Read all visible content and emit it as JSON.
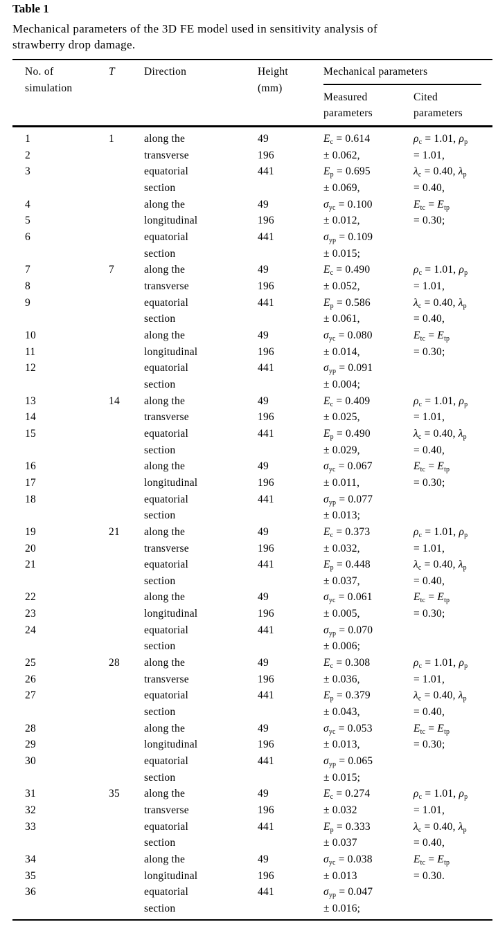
{
  "table": {
    "label": "Table 1",
    "caption_line1": "Mechanical parameters of the 3D FE model used in sensitivity analysis of",
    "caption_line2": "strawberry drop damage.",
    "headers": {
      "no_line1": "No. of",
      "no_line2": "simulation",
      "t": "T",
      "direction": "Direction",
      "height_line1": "Height",
      "height_line2": "(mm)",
      "mechanical": "Mechanical parameters",
      "measured_line1": "Measured",
      "measured_line2": "parameters",
      "cited_line1": "Cited",
      "cited_line2": "parameters"
    },
    "direction_lines": [
      "along the",
      "transverse",
      "equatorial",
      "section",
      "along the",
      "longitudinal",
      "equatorial",
      "section"
    ],
    "heights": [
      "49",
      "196",
      "441",
      "49",
      "196",
      "441"
    ],
    "groups": [
      {
        "t": "1",
        "sims": [
          "1",
          "2",
          "3",
          "4",
          "5",
          "6"
        ],
        "measured": [
          [
            "E",
            "c",
            " = 0.614"
          ],
          [
            "",
            "",
            "± 0.062,"
          ],
          [
            "E",
            "p",
            " = 0.695"
          ],
          [
            "",
            "",
            "± 0.069,"
          ],
          [
            "σ",
            "yc",
            " = 0.100"
          ],
          [
            "",
            "",
            "± 0.012,"
          ],
          [
            "σ",
            "yp",
            " = 0.109"
          ],
          [
            "",
            "",
            "± 0.015;"
          ]
        ],
        "cited_last": "= 0.30;"
      },
      {
        "t": "7",
        "sims": [
          "7",
          "8",
          "9",
          "10",
          "11",
          "12"
        ],
        "measured": [
          [
            "E",
            "c",
            " = 0.490"
          ],
          [
            "",
            "",
            "± 0.052,"
          ],
          [
            "E",
            "p",
            " = 0.586"
          ],
          [
            "",
            "",
            "± 0.061,"
          ],
          [
            "σ",
            "yc",
            " = 0.080"
          ],
          [
            "",
            "",
            "± 0.014,"
          ],
          [
            "σ",
            "yp",
            " = 0.091"
          ],
          [
            "",
            "",
            "± 0.004;"
          ]
        ],
        "cited_last": "= 0.30;"
      },
      {
        "t": "14",
        "sims": [
          "13",
          "14",
          "15",
          "16",
          "17",
          "18"
        ],
        "measured": [
          [
            "E",
            "c",
            " = 0.409"
          ],
          [
            "",
            "",
            "± 0.025,"
          ],
          [
            "E",
            "p",
            " = 0.490"
          ],
          [
            "",
            "",
            "± 0.029,"
          ],
          [
            "σ",
            "yc",
            " = 0.067"
          ],
          [
            "",
            "",
            "± 0.011,"
          ],
          [
            "σ",
            "yp",
            " = 0.077"
          ],
          [
            "",
            "",
            "± 0.013;"
          ]
        ],
        "cited_last": "= 0.30;"
      },
      {
        "t": "21",
        "sims": [
          "19",
          "20",
          "21",
          "22",
          "23",
          "24"
        ],
        "measured": [
          [
            "E",
            "c",
            " = 0.373"
          ],
          [
            "",
            "",
            "± 0.032,"
          ],
          [
            "E",
            "p",
            " = 0.448"
          ],
          [
            "",
            "",
            "± 0.037,"
          ],
          [
            "σ",
            "yc",
            " = 0.061"
          ],
          [
            "",
            "",
            "± 0.005,"
          ],
          [
            "σ",
            "yp",
            " = 0.070"
          ],
          [
            "",
            "",
            "± 0.006;"
          ]
        ],
        "cited_last": "= 0.30;"
      },
      {
        "t": "28",
        "sims": [
          "25",
          "26",
          "27",
          "28",
          "29",
          "30"
        ],
        "measured": [
          [
            "E",
            "c",
            " = 0.308"
          ],
          [
            "",
            "",
            "± 0.036,"
          ],
          [
            "E",
            "p",
            " = 0.379"
          ],
          [
            "",
            "",
            "± 0.043,"
          ],
          [
            "σ",
            "yc",
            " = 0.053"
          ],
          [
            "",
            "",
            "± 0.013,"
          ],
          [
            "σ",
            "yp",
            " = 0.065"
          ],
          [
            "",
            "",
            "± 0.015;"
          ]
        ],
        "cited_last": "= 0.30;"
      },
      {
        "t": "35",
        "sims": [
          "31",
          "32",
          "33",
          "34",
          "35",
          "36"
        ],
        "measured": [
          [
            "E",
            "c",
            " = 0.274"
          ],
          [
            "",
            "",
            "± 0.032"
          ],
          [
            "E",
            "p",
            " = 0.333"
          ],
          [
            "",
            "",
            "± 0.037"
          ],
          [
            "σ",
            "yc",
            " = 0.038"
          ],
          [
            "",
            "",
            "± 0.013"
          ],
          [
            "σ",
            "yp",
            " = 0.047"
          ],
          [
            "",
            "",
            "± 0.016;"
          ]
        ],
        "cited_last": "= 0.30."
      }
    ],
    "cited_lines": [
      [
        [
          "ρ",
          "i"
        ],
        [
          "c",
          "sub"
        ],
        [
          " = 1.01, ",
          ""
        ],
        [
          "ρ",
          "i"
        ],
        [
          "p",
          "sub"
        ]
      ],
      [
        [
          "= 1.01,",
          ""
        ]
      ],
      [
        [
          "λ",
          "i"
        ],
        [
          "c",
          "sub"
        ],
        [
          " = 0.40, ",
          ""
        ],
        [
          "λ",
          "i"
        ],
        [
          "p",
          "sub"
        ]
      ],
      [
        [
          "= 0.40,",
          ""
        ]
      ],
      [
        [
          "E",
          "i"
        ],
        [
          "tc",
          "sub"
        ],
        [
          " = ",
          ""
        ],
        [
          "E",
          "i"
        ],
        [
          "tp",
          "sub"
        ]
      ]
    ]
  }
}
